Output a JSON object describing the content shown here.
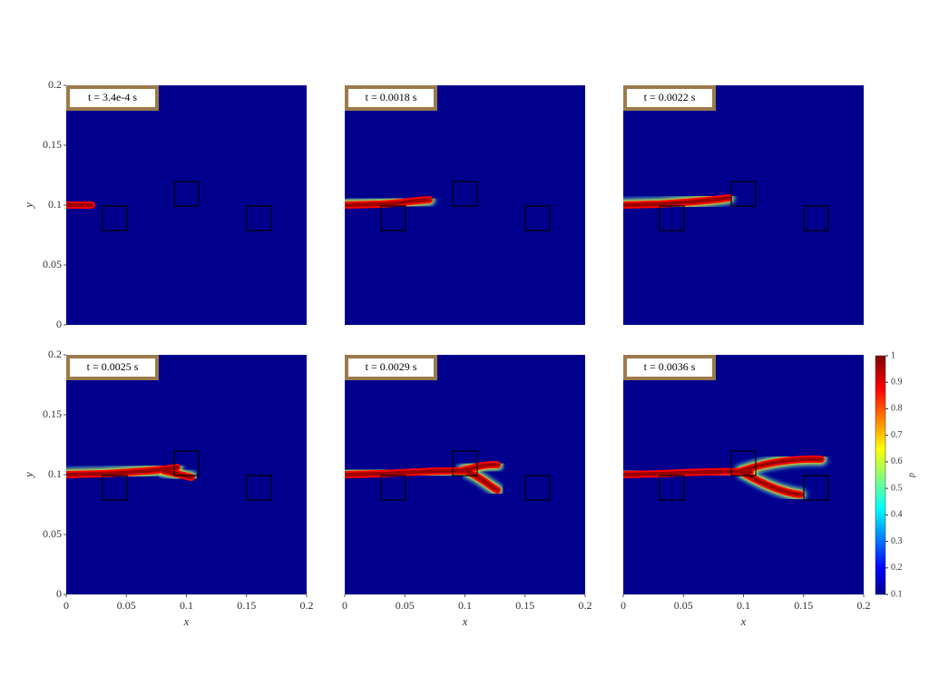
{
  "chart_data": [
    {
      "type": "heatmap",
      "annotation": "t = 3.4e-4 s",
      "xlim": [
        0,
        0.2
      ],
      "ylim": [
        0,
        0.2
      ],
      "yticks": [
        0,
        0.05,
        0.1,
        0.15,
        0.2
      ],
      "ylabel": "y"
    },
    {
      "type": "heatmap",
      "annotation": "t = 0.0018 s",
      "xlim": [
        0,
        0.2
      ],
      "ylim": [
        0,
        0.2
      ]
    },
    {
      "type": "heatmap",
      "annotation": "t = 0.0022 s",
      "xlim": [
        0,
        0.2
      ],
      "ylim": [
        0,
        0.2
      ]
    },
    {
      "type": "heatmap",
      "annotation": "t = 0.0025 s",
      "xlim": [
        0,
        0.2
      ],
      "ylim": [
        0,
        0.2
      ],
      "xticks": [
        0,
        0.05,
        0.1,
        0.15,
        0.2
      ],
      "yticks": [
        0,
        0.05,
        0.1,
        0.15,
        0.2
      ],
      "xlabel": "x",
      "ylabel": "y"
    },
    {
      "type": "heatmap",
      "annotation": "t = 0.0029 s",
      "xlim": [
        0,
        0.2
      ],
      "ylim": [
        0,
        0.2
      ],
      "xticks": [
        0,
        0.05,
        0.1,
        0.15,
        0.2
      ],
      "xlabel": "x"
    },
    {
      "type": "heatmap",
      "annotation": "t = 0.0036 s",
      "xlim": [
        0,
        0.2
      ],
      "ylim": [
        0,
        0.2
      ],
      "xticks": [
        0,
        0.05,
        0.1,
        0.15,
        0.2
      ],
      "xlabel": "x",
      "colorbar": {
        "label": "d",
        "lim": [
          0.1,
          1
        ],
        "ticks": [
          0.1,
          0.2,
          0.3,
          0.4,
          0.5,
          0.6,
          0.7,
          0.8,
          0.9,
          1
        ]
      }
    }
  ]
}
